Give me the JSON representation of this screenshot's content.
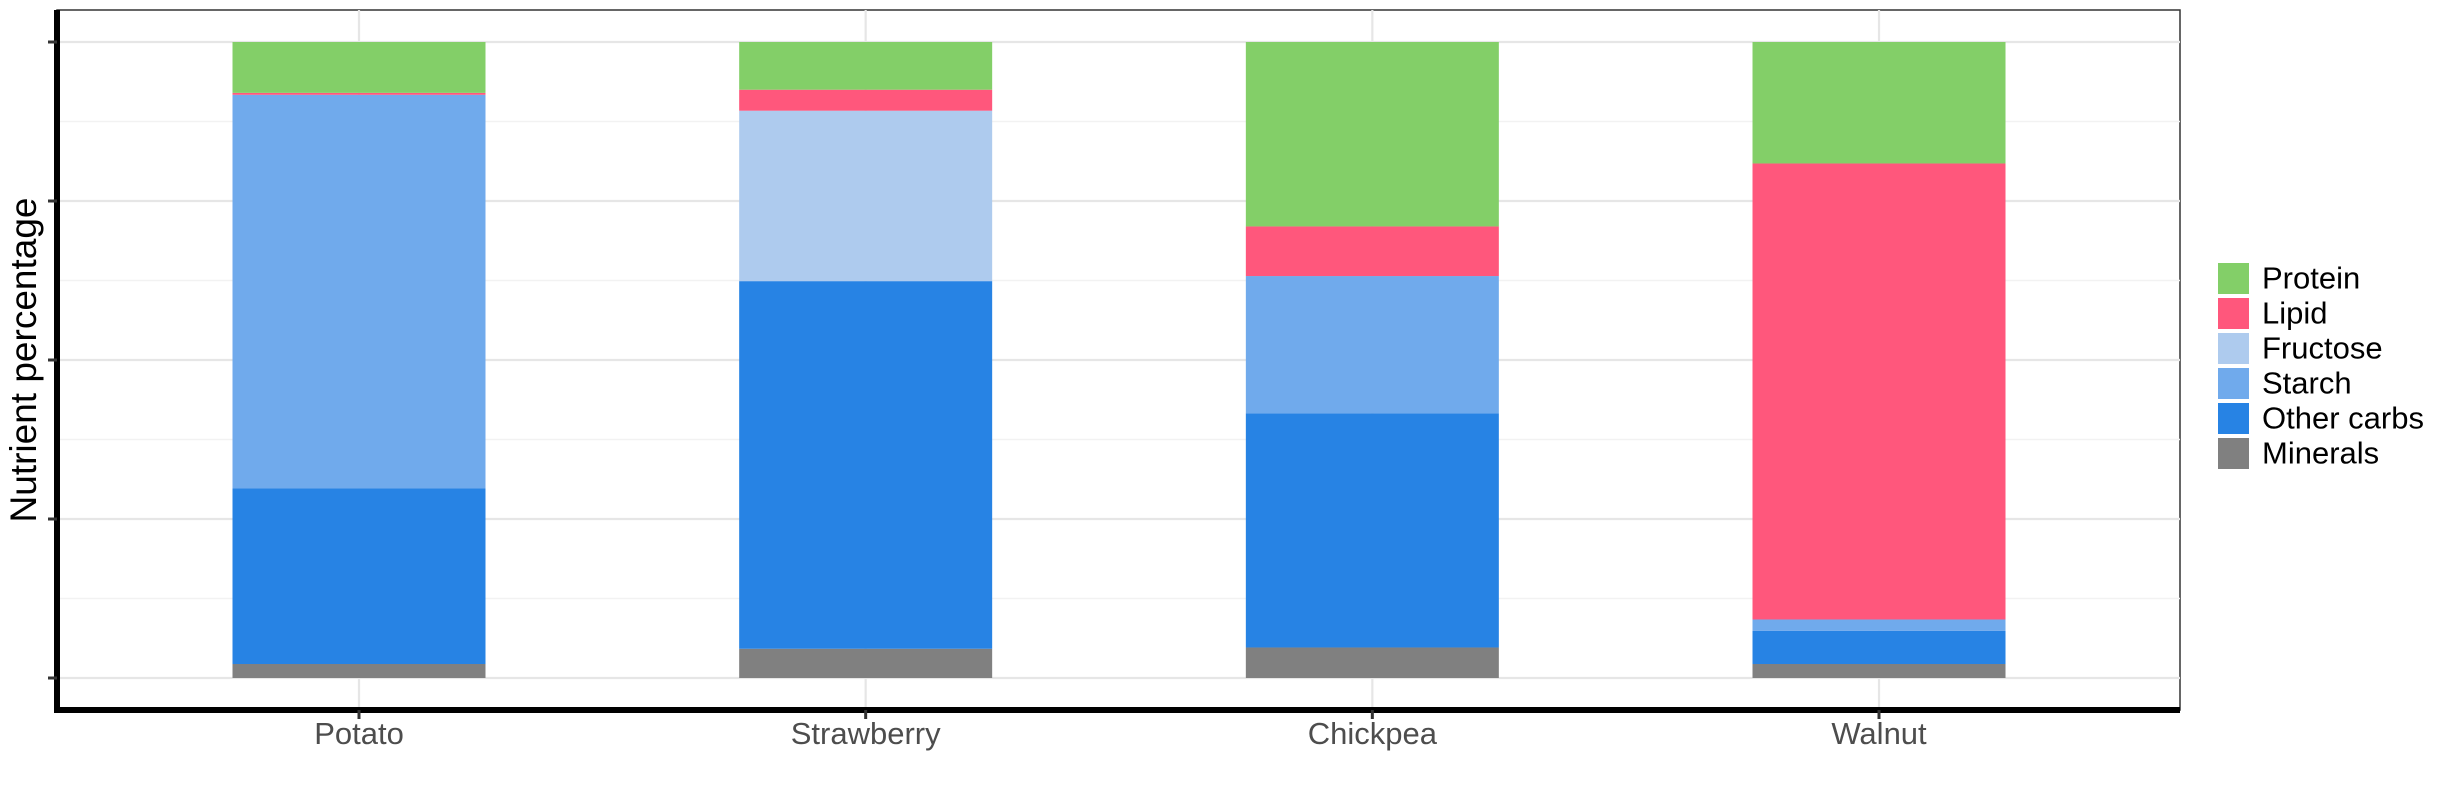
{
  "chart_data": {
    "type": "bar",
    "stacked": true,
    "normalized": true,
    "title": "",
    "xlabel": "",
    "ylabel": "Nutrient percentage",
    "ylim": [
      0,
      1
    ],
    "grid": true,
    "legend_position": "right",
    "y_tick_labels_visible": false,
    "categories": [
      "Potato",
      "Strawberry",
      "Chickpea",
      "Walnut"
    ],
    "series": [
      {
        "name": "Minerals",
        "color": "#808080",
        "values": [
          0.022,
          0.046,
          0.048,
          0.022
        ]
      },
      {
        "name": "Other carbs",
        "color": "#2783E4",
        "values": [
          0.276,
          0.578,
          0.368,
          0.052
        ]
      },
      {
        "name": "Starch",
        "color": "#70AAEC",
        "values": [
          0.619,
          0.0,
          0.216,
          0.018
        ]
      },
      {
        "name": "Fructose",
        "color": "#AECBEE",
        "values": [
          0.0,
          0.268,
          0.0,
          0.0
        ]
      },
      {
        "name": "Lipid",
        "color": "#FF577C",
        "values": [
          0.003,
          0.033,
          0.078,
          0.717
        ]
      },
      {
        "name": "Protein",
        "color": "#83CF68",
        "values": [
          0.08,
          0.075,
          0.29,
          0.191
        ]
      }
    ],
    "legend_order": [
      "Protein",
      "Lipid",
      "Fructose",
      "Starch",
      "Other carbs",
      "Minerals"
    ]
  }
}
